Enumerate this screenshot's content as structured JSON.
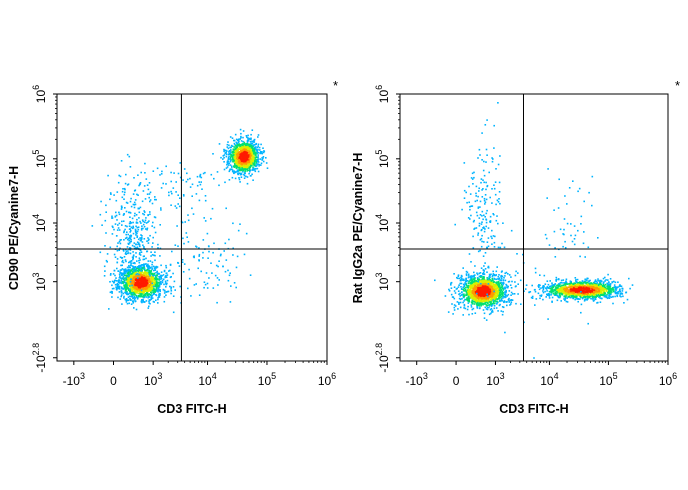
{
  "chart_data": [
    {
      "type": "scatter",
      "subtype": "flow-cytometry-density-dot-plot",
      "xlabel": "CD3 FITC-H",
      "ylabel": "CD90 PE/Cyanine7-H",
      "corner_mark": "*",
      "x_scale": "biexponential",
      "y_scale": "biexponential",
      "x_ticks": [
        {
          "label": "-10",
          "exp": "3",
          "value": -1000
        },
        {
          "label": "0",
          "exp": "",
          "value": 0
        },
        {
          "label": "10",
          "exp": "3",
          "value": 1000
        },
        {
          "label": "10",
          "exp": "4",
          "value": 10000
        },
        {
          "label": "10",
          "exp": "5",
          "value": 100000
        },
        {
          "label": "10",
          "exp": "6",
          "value": 1000000
        }
      ],
      "y_ticks": [
        {
          "label": "-10",
          "exp": "2.8",
          "value": -631
        },
        {
          "label": "10",
          "exp": "3",
          "value": 1000
        },
        {
          "label": "10",
          "exp": "4",
          "value": 10000
        },
        {
          "label": "10",
          "exp": "5",
          "value": 100000
        },
        {
          "label": "10",
          "exp": "6",
          "value": 1000000
        }
      ],
      "quadrant_gate": {
        "x": 3500,
        "y": 3800
      },
      "populations": [
        {
          "name": "CD3- CD90+ low cluster",
          "x_center": 500,
          "y_center": 1000,
          "density": "high"
        },
        {
          "name": "CD3+ CD90+ cluster",
          "x_center": 40000,
          "y_center": 110000,
          "density": "high"
        },
        {
          "name": "CD3- rising tail",
          "x_center": 300,
          "y_center": 8000,
          "density": "low"
        }
      ]
    },
    {
      "type": "scatter",
      "subtype": "flow-cytometry-density-dot-plot",
      "xlabel": "CD3 FITC-H",
      "ylabel": "Rat IgG2a PE/Cyanine7-H",
      "corner_mark": "*",
      "x_scale": "biexponential",
      "y_scale": "biexponential",
      "x_ticks": [
        {
          "label": "-10",
          "exp": "3",
          "value": -1000
        },
        {
          "label": "0",
          "exp": "",
          "value": 0
        },
        {
          "label": "10",
          "exp": "3",
          "value": 1000
        },
        {
          "label": "10",
          "exp": "4",
          "value": 10000
        },
        {
          "label": "10",
          "exp": "5",
          "value": 100000
        },
        {
          "label": "10",
          "exp": "6",
          "value": 1000000
        }
      ],
      "y_ticks": [
        {
          "label": "-10",
          "exp": "2.8",
          "value": -631
        },
        {
          "label": "10",
          "exp": "3",
          "value": 1000
        },
        {
          "label": "10",
          "exp": "4",
          "value": 10000
        },
        {
          "label": "10",
          "exp": "5",
          "value": 100000
        },
        {
          "label": "10",
          "exp": "6",
          "value": 1000000
        }
      ],
      "quadrant_gate": {
        "x": 3500,
        "y": 3800
      },
      "populations": [
        {
          "name": "CD3- isotype cluster",
          "x_center": 500,
          "y_center": 650,
          "density": "high"
        },
        {
          "name": "CD3+ isotype cluster",
          "x_center": 30000,
          "y_center": 700,
          "density": "high"
        },
        {
          "name": "CD3- rising tail",
          "x_center": 500,
          "y_center": 15000,
          "density": "low"
        }
      ]
    }
  ]
}
